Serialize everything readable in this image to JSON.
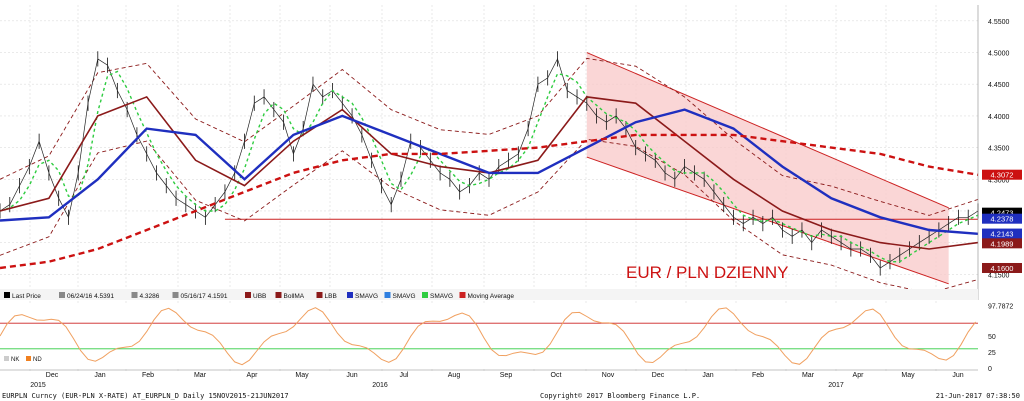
{
  "chart_data": {
    "type": "line",
    "annotation": "EUR / PLN DZIENNY",
    "header_line": "EURPLN Curncy (EUR-PLN X-RATE) AT_EURPLN_D  Daily 15NOV2015-21JUN2017",
    "copyright": "Copyright© 2017 Bloomberg Finance L.P.",
    "timestamp": "21-Jun-2017 07:38:50",
    "legend": [
      {
        "label": "Last Price",
        "color": "#000000"
      },
      {
        "label": "06/24/16 4.5391",
        "color": "#888888"
      },
      {
        "label": "4.3286",
        "color": "#888888"
      },
      {
        "label": "05/16/17 4.1591",
        "color": "#888888"
      },
      {
        "label": "UBB",
        "color": "#8b1a1a"
      },
      {
        "label": "BollMA",
        "color": "#8b1a1a"
      },
      {
        "label": "LBB",
        "color": "#8b1a1a"
      },
      {
        "label": "SMAVG",
        "color": "#1f2fbf"
      },
      {
        "label": "SMAVG",
        "color": "#2f7fe0"
      },
      {
        "label": "SMAVG",
        "color": "#2ecc40"
      },
      {
        "label": "Moving Average",
        "color": "#cc2222"
      }
    ],
    "y_ticks": [
      "4.5500",
      "4.5000",
      "4.4500",
      "4.4000",
      "4.3500",
      "4.3000",
      "4.2500",
      "4.2000",
      "4.1500"
    ],
    "ylim": [
      4.13,
      4.575
    ],
    "price_tags": [
      {
        "value": 4.3072,
        "label": "4.3072",
        "color": "#cc1111"
      },
      {
        "value": 4.2473,
        "label": "4.2473",
        "color": "#000000"
      },
      {
        "value": 4.2378,
        "label": "4.2378",
        "color": "#1f2fbf"
      },
      {
        "value": 4.2143,
        "label": "4.2143",
        "color": "#1f2fbf"
      },
      {
        "value": 4.1989,
        "label": "4.1989",
        "color": "#8b1a1a"
      },
      {
        "value": 4.16,
        "label": "4.1600",
        "color": "#8b1a1a"
      }
    ],
    "months": [
      "Dec",
      "Jan",
      "Feb",
      "Mar",
      "Apr",
      "May",
      "Jun",
      "Jul",
      "Aug",
      "Sep",
      "Oct",
      "Nov",
      "Dec",
      "Jan",
      "Feb",
      "Mar",
      "Apr",
      "May",
      "Jun"
    ],
    "years": [
      "2015",
      "2016",
      "2017"
    ],
    "horizontal_line": 4.237,
    "series": [
      {
        "name": "Last Price",
        "key": "price",
        "x": [
          0,
          4,
          8,
          12,
          16,
          20,
          24,
          28,
          32,
          36,
          40,
          44,
          48,
          52,
          56,
          60,
          64,
          68,
          72,
          76,
          80,
          84,
          88,
          92,
          96,
          100,
          104,
          108,
          112,
          116,
          120,
          124,
          128,
          132,
          136,
          140,
          144,
          148,
          152,
          156,
          160,
          164,
          168,
          172,
          176,
          180,
          184,
          188,
          192,
          196,
          200,
          204,
          208,
          212,
          216,
          220,
          224,
          228,
          232,
          236,
          240,
          244,
          248,
          252,
          256,
          260,
          264,
          268,
          272,
          276,
          280,
          284,
          288,
          292,
          296,
          300,
          304,
          308,
          312,
          316,
          320,
          324,
          328,
          332,
          336,
          340,
          344,
          348,
          352,
          356,
          360,
          364,
          368,
          372,
          376,
          380,
          384,
          388,
          392,
          396,
          400
        ],
        "values": [
          4.25,
          4.26,
          4.29,
          4.32,
          4.36,
          4.31,
          4.27,
          4.24,
          4.31,
          4.42,
          4.49,
          4.48,
          4.44,
          4.41,
          4.37,
          4.34,
          4.31,
          4.29,
          4.27,
          4.26,
          4.25,
          4.24,
          4.26,
          4.28,
          4.31,
          4.36,
          4.42,
          4.43,
          4.41,
          4.39,
          4.34,
          4.38,
          4.45,
          4.43,
          4.44,
          4.42,
          4.4,
          4.37,
          4.33,
          4.29,
          4.26,
          4.3,
          4.36,
          4.35,
          4.33,
          4.31,
          4.3,
          4.28,
          4.29,
          4.31,
          4.3,
          4.32,
          4.33,
          4.34,
          4.38,
          4.45,
          4.46,
          4.49,
          4.44,
          4.43,
          4.42,
          4.4,
          4.39,
          4.4,
          4.38,
          4.35,
          4.34,
          4.33,
          4.31,
          4.3,
          4.32,
          4.31,
          4.3,
          4.28,
          4.26,
          4.24,
          4.23,
          4.24,
          4.23,
          4.24,
          4.22,
          4.21,
          4.22,
          4.2,
          4.22,
          4.21,
          4.2,
          4.19,
          4.19,
          4.18,
          4.16,
          4.17,
          4.18,
          4.19,
          4.2,
          4.21,
          4.22,
          4.23,
          4.24,
          4.24,
          4.25
        ]
      },
      {
        "name": "BollMA",
        "key": "boll",
        "x": [
          0,
          20,
          40,
          60,
          80,
          100,
          120,
          140,
          160,
          180,
          200,
          220,
          240,
          260,
          280,
          300,
          320,
          340,
          360,
          380,
          400
        ],
        "values": [
          4.25,
          4.27,
          4.4,
          4.43,
          4.33,
          4.29,
          4.36,
          4.41,
          4.34,
          4.32,
          4.31,
          4.33,
          4.43,
          4.42,
          4.36,
          4.3,
          4.25,
          4.22,
          4.2,
          4.19,
          4.2
        ]
      },
      {
        "name": "SMAVG",
        "key": "sma_blue",
        "x": [
          0,
          20,
          40,
          60,
          80,
          100,
          120,
          140,
          160,
          180,
          200,
          220,
          240,
          260,
          280,
          300,
          320,
          340,
          360,
          380,
          400
        ],
        "values": [
          4.235,
          4.24,
          4.3,
          4.38,
          4.37,
          4.3,
          4.37,
          4.4,
          4.37,
          4.34,
          4.31,
          4.31,
          4.35,
          4.39,
          4.41,
          4.38,
          4.32,
          4.27,
          4.24,
          4.22,
          4.214
        ]
      },
      {
        "name": "Moving Average",
        "key": "ma_red",
        "x": [
          0,
          20,
          40,
          60,
          80,
          100,
          120,
          140,
          160,
          180,
          200,
          220,
          240,
          260,
          280,
          300,
          320,
          340,
          360,
          380,
          400
        ],
        "values": [
          4.16,
          4.17,
          4.19,
          4.22,
          4.25,
          4.28,
          4.31,
          4.33,
          4.34,
          4.34,
          4.345,
          4.35,
          4.36,
          4.37,
          4.37,
          4.37,
          4.36,
          4.35,
          4.34,
          4.32,
          4.307
        ]
      }
    ],
    "oscillator": {
      "ticks": [
        "97.7872",
        "50",
        "25",
        "0"
      ],
      "legend": [
        "NK",
        "ND"
      ],
      "levels": [
        70,
        30
      ]
    }
  }
}
